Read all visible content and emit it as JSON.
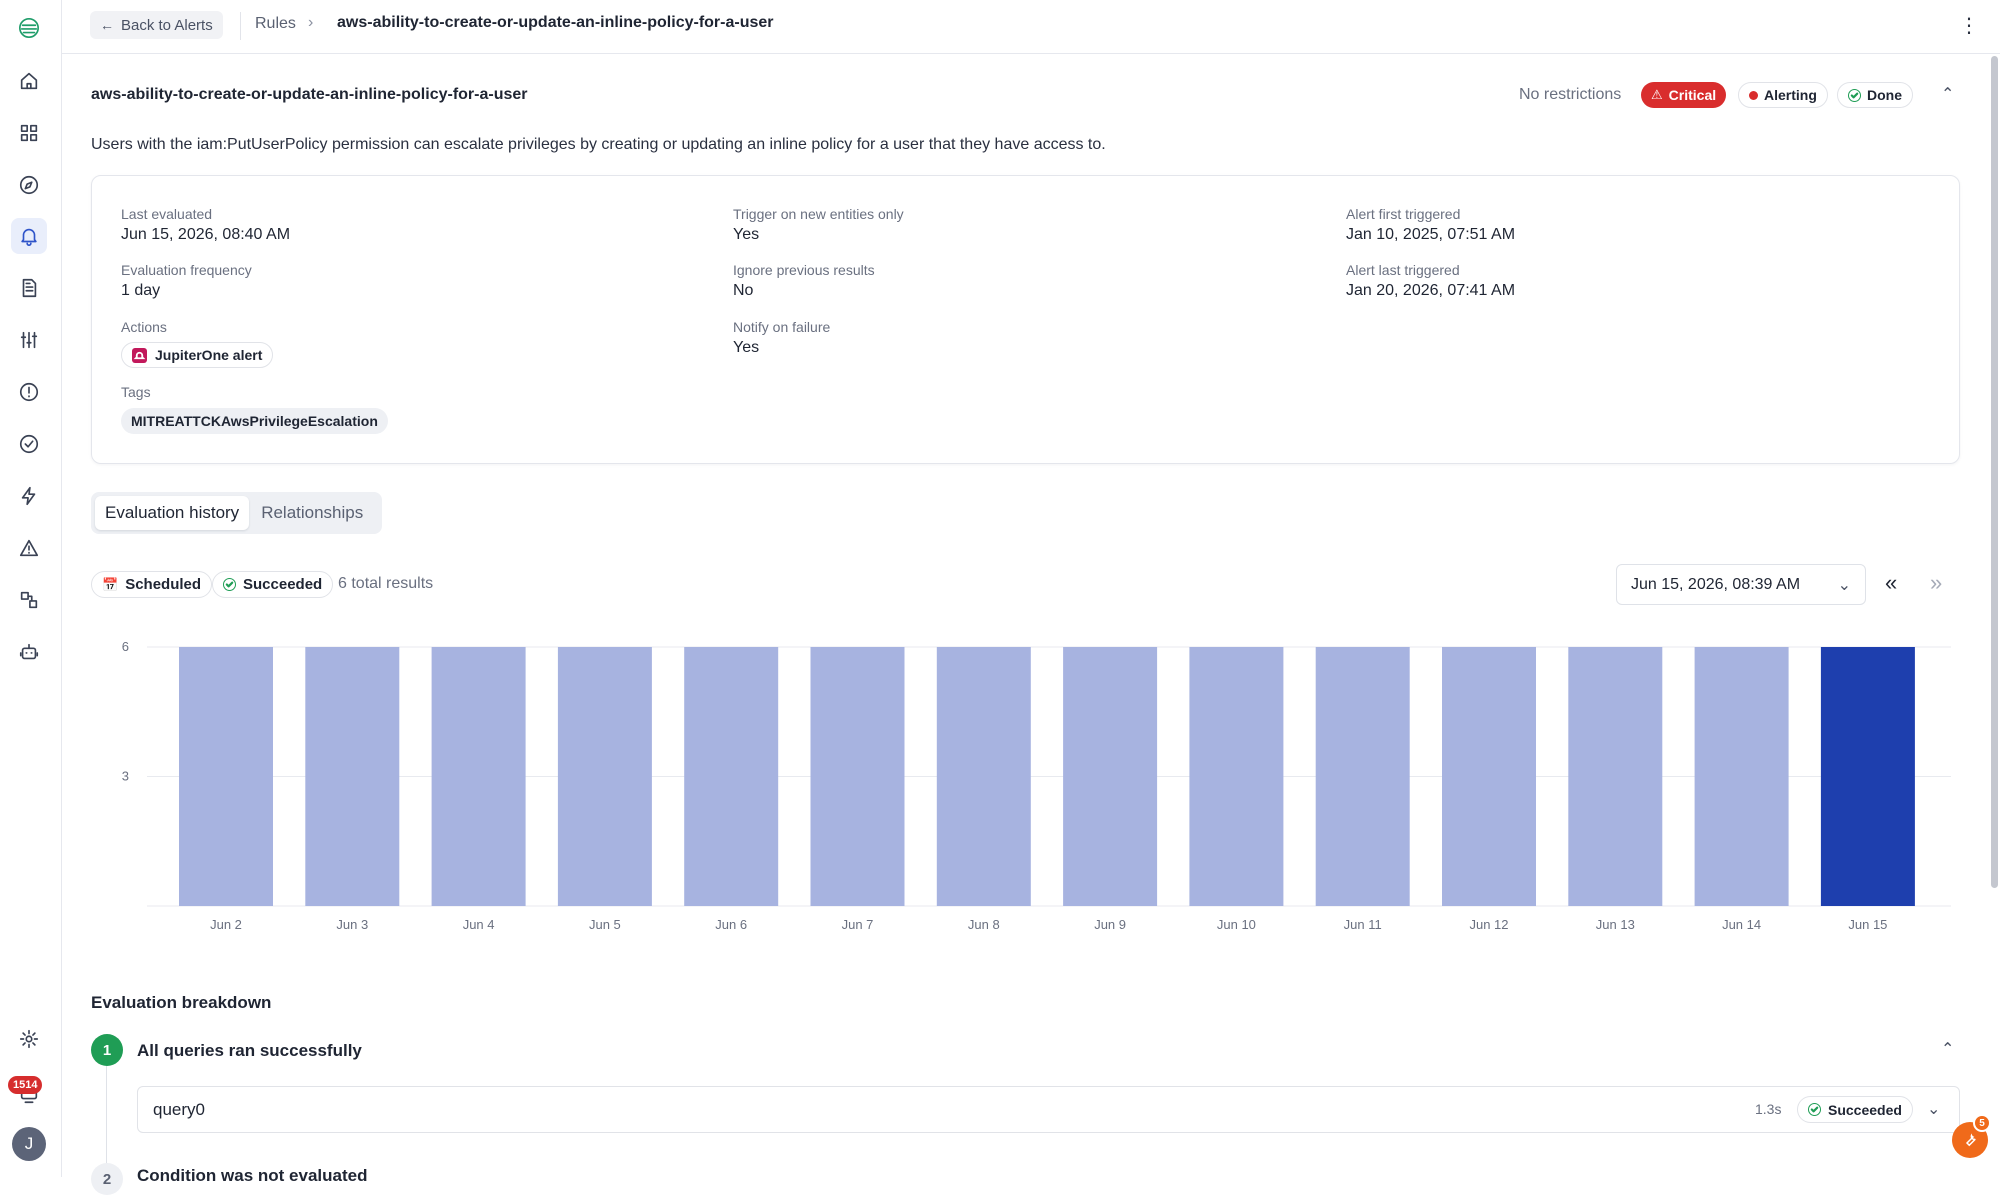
{
  "topbar": {
    "back_label": "Back to Alerts",
    "crumb_parent": "Rules",
    "crumb_current": "aws-ability-to-create-or-update-an-inline-policy-for-a-user"
  },
  "sidebar": {
    "notification_count": "1514",
    "avatar_initial": "J"
  },
  "rule": {
    "title": "aws-ability-to-create-or-update-an-inline-policy-for-a-user",
    "restrictions": "No restrictions",
    "severity": "Critical",
    "state": "Alerting",
    "status": "Done",
    "description": "Users with the iam:PutUserPolicy permission can escalate privileges by creating or updating an inline policy for a user that they have access to."
  },
  "details": {
    "last_evaluated_label": "Last evaluated",
    "last_evaluated_value": "Jun 15, 2026, 08:40 AM",
    "frequency_label": "Evaluation frequency",
    "frequency_value": "1 day",
    "actions_label": "Actions",
    "action_chip": "JupiterOne alert",
    "tags_label": "Tags",
    "tag_chip": "MITREATTCKAwsPrivilegeEscalation",
    "trigger_new_label": "Trigger on new entities only",
    "trigger_new_value": "Yes",
    "ignore_prev_label": "Ignore previous results",
    "ignore_prev_value": "No",
    "notify_fail_label": "Notify on failure",
    "notify_fail_value": "Yes",
    "first_triggered_label": "Alert first triggered",
    "first_triggered_value": "Jan 10, 2025, 07:51 AM",
    "last_triggered_label": "Alert last triggered",
    "last_triggered_value": "Jan 20, 2026, 07:41 AM"
  },
  "tabs": {
    "history": "Evaluation history",
    "relationships": "Relationships"
  },
  "filters": {
    "scheduled": "Scheduled",
    "succeeded": "Succeeded",
    "total": "6 total results",
    "date": "Jun 15, 2026, 08:39 AM"
  },
  "colors": {
    "bar": "#a7b3e0",
    "bar_selected": "#1e3fae",
    "critical": "#d92d2d",
    "success": "#1f9d55"
  },
  "chart_data": {
    "type": "bar",
    "categories": [
      "Jun 2",
      "Jun 3",
      "Jun 4",
      "Jun 5",
      "Jun 6",
      "Jun 7",
      "Jun 8",
      "Jun 9",
      "Jun 10",
      "Jun 11",
      "Jun 12",
      "Jun 13",
      "Jun 14",
      "Jun 15"
    ],
    "values": [
      6,
      6,
      6,
      6,
      6,
      6,
      6,
      6,
      6,
      6,
      6,
      6,
      6,
      6
    ],
    "selected": "Jun 15",
    "yticks": [
      3,
      6
    ],
    "ylim": [
      0,
      6
    ],
    "grid": true
  },
  "breakdown": {
    "title": "Evaluation breakdown",
    "step1_num": "1",
    "step1_title": "All queries ran successfully",
    "query_name": "query0",
    "query_time": "1.3s",
    "query_status": "Succeeded",
    "step2_num": "2",
    "step2_title": "Condition was not evaluated"
  },
  "fab_badge": "5"
}
